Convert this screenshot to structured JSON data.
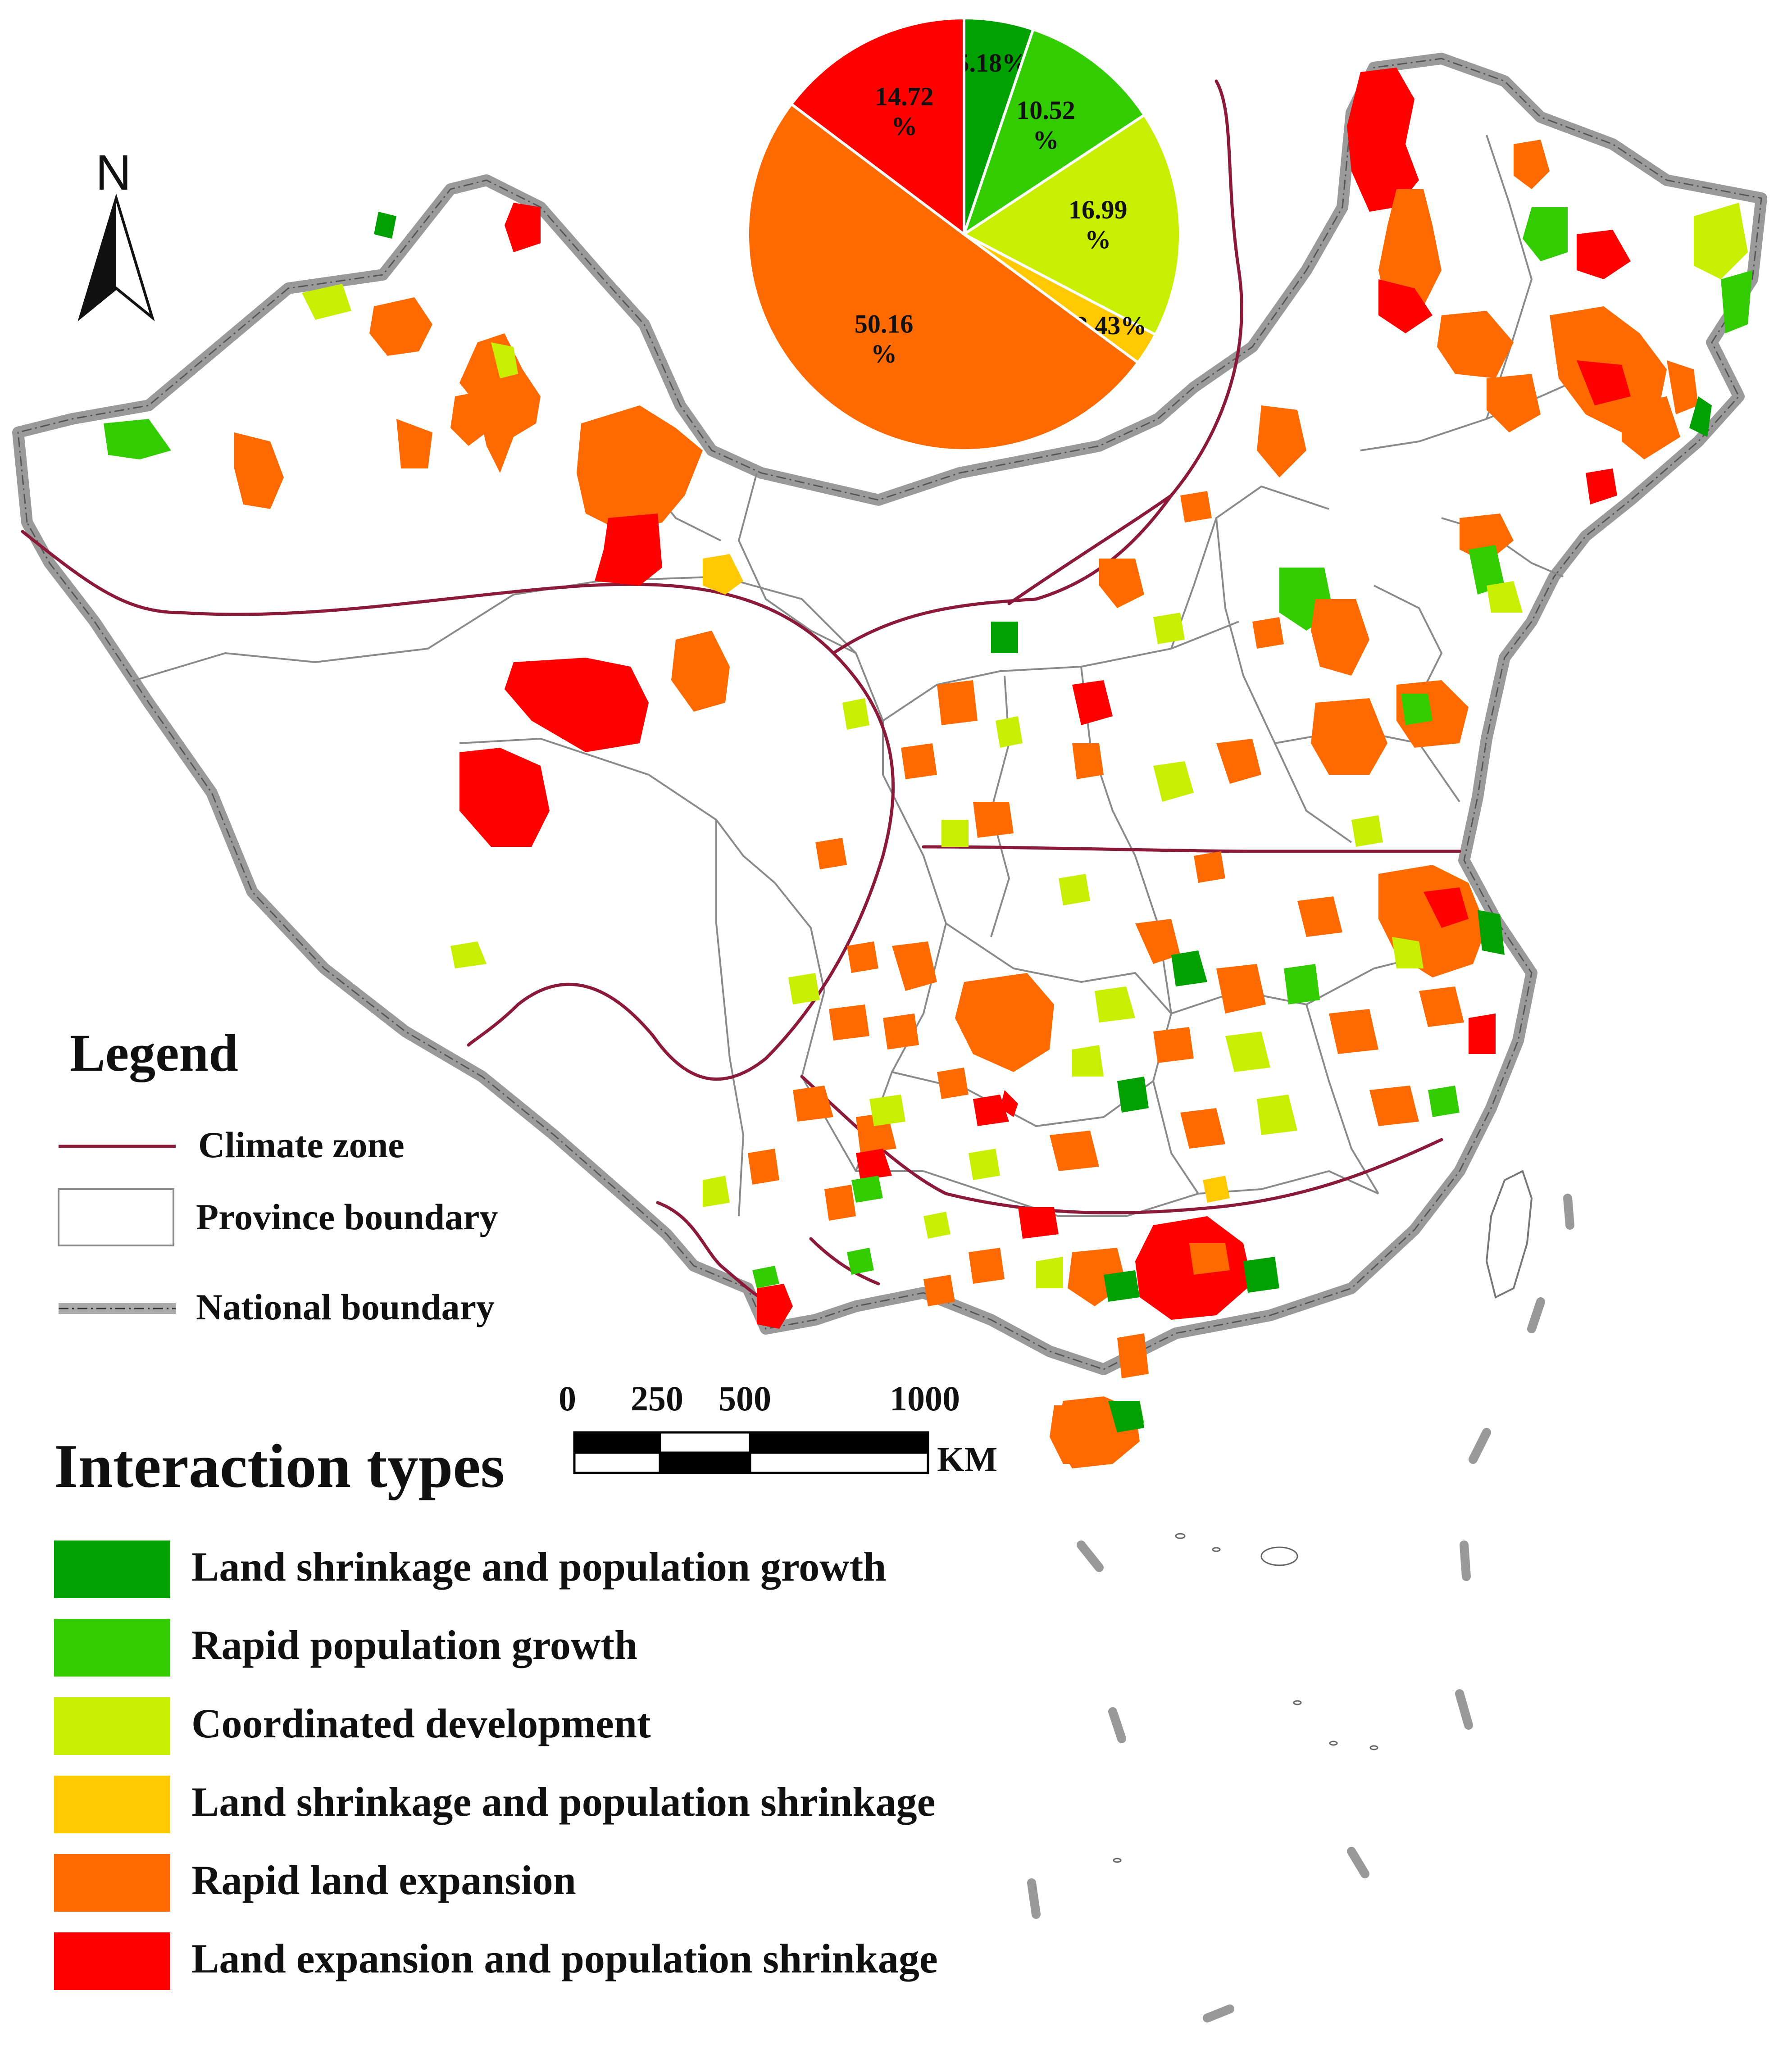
{
  "north": {
    "label": "N"
  },
  "legend": {
    "title": "Legend",
    "items": [
      {
        "label": "Climate zone",
        "symbol": "climate-zone-line",
        "color": "#8b1a3a"
      },
      {
        "label": "Province boundary",
        "symbol": "province-boundary-box",
        "color": "#888888"
      },
      {
        "label": "National boundary",
        "symbol": "national-boundary-line",
        "color": "#999999"
      }
    ]
  },
  "scale_bar": {
    "ticks": [
      "0",
      "250",
      "500",
      "1000"
    ],
    "unit": "KM"
  },
  "interaction_types": {
    "title": "Interaction types",
    "items": [
      {
        "label": "Land shrinkage and population growth",
        "color": "#00a000"
      },
      {
        "label": "Rapid population growth",
        "color": "#33cc00"
      },
      {
        "label": "Coordinated development",
        "color": "#c8ee00"
      },
      {
        "label": "Land shrinkage and population shrinkage",
        "color": "#ffc800"
      },
      {
        "label": "Rapid land expansion",
        "color": "#ff6a00"
      },
      {
        "label": "Land expansion and population shrinkage",
        "color": "#ff0000"
      }
    ]
  },
  "chart_data": {
    "type": "pie",
    "slices": [
      {
        "label": "5.18%",
        "value": 5.18,
        "color": "#00a000"
      },
      {
        "label": "10.52 %",
        "value": 10.52,
        "color": "#33cc00"
      },
      {
        "label": "16.99 %",
        "value": 16.99,
        "color": "#c8ee00"
      },
      {
        "label": "2.43%",
        "value": 2.43,
        "color": "#ffc800"
      },
      {
        "label": "50.16 %",
        "value": 50.16,
        "color": "#ff6a00"
      },
      {
        "label": "14.72 %",
        "value": 14.72,
        "color": "#ff0000"
      }
    ],
    "start": "12 o'clock",
    "direction": "clockwise"
  }
}
